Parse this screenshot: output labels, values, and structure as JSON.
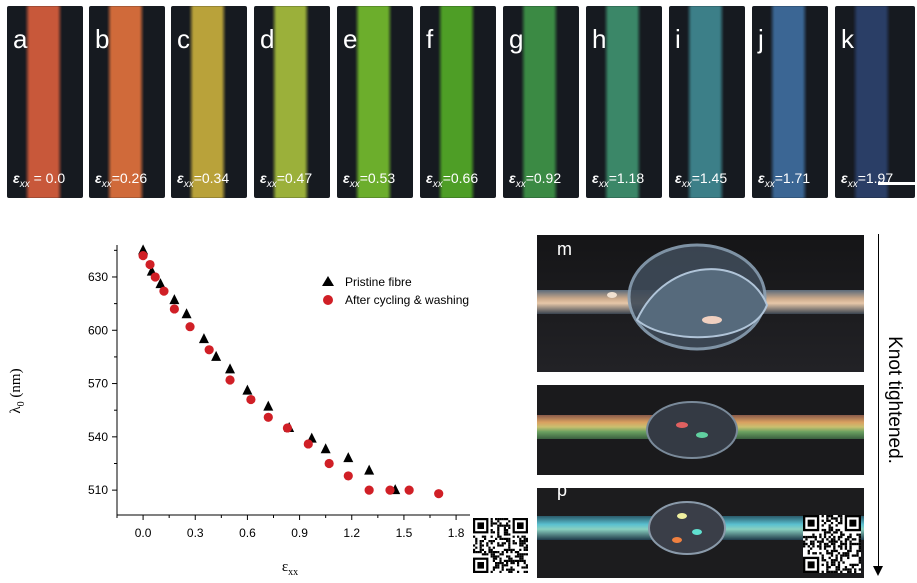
{
  "panels": [
    {
      "letter": "a",
      "symbol": "ε",
      "sub": "xx",
      "strain": " = 0.0",
      "color": "#c8583a"
    },
    {
      "letter": "b",
      "symbol": "ε",
      "sub": "xx",
      "strain": "=0.26",
      "color": "#d06a3a"
    },
    {
      "letter": "c",
      "symbol": "ε",
      "sub": "xx",
      "strain": "=0.34",
      "color": "#b9a23a"
    },
    {
      "letter": "d",
      "symbol": "ε",
      "sub": "xx",
      "strain": "=0.47",
      "color": "#9bb03a"
    },
    {
      "letter": "e",
      "symbol": "ε",
      "sub": "xx",
      "strain": "=0.53",
      "color": "#6cae2c"
    },
    {
      "letter": "f",
      "symbol": "ε",
      "sub": "xx",
      "strain": "=0.66",
      "color": "#4e9e26"
    },
    {
      "letter": "g",
      "symbol": "ε",
      "sub": "xx",
      "strain": "=0.92",
      "color": "#3b8a44"
    },
    {
      "letter": "h",
      "symbol": "ε",
      "sub": "xx",
      "strain": "=1.18",
      "color": "#3b8768"
    },
    {
      "letter": "i",
      "symbol": "ε",
      "sub": "xx",
      "strain": "=1.45",
      "color": "#3c7f88"
    },
    {
      "letter": "j",
      "symbol": "ε",
      "sub": "xx",
      "strain": "=1.71",
      "color": "#3b6694"
    },
    {
      "letter": "k",
      "symbol": "ε",
      "sub": "xx",
      "strain": "=1.97",
      "color": "#2a3e66"
    }
  ],
  "photos": [
    {
      "label": "m"
    },
    {
      "label": ""
    },
    {
      "label": "p"
    }
  ],
  "side_label": "Knot tightened.",
  "chart_data": {
    "type": "scatter",
    "xlabel": "ε",
    "xlabel_sub": "xx",
    "ylabel": "λ",
    "ylabel_sub": "0",
    "ylabel_unit": " (nm)",
    "xlim": [
      -0.15,
      1.88
    ],
    "ylim": [
      496,
      648
    ],
    "xticks": [
      0.0,
      0.3,
      0.6,
      0.9,
      1.2,
      1.5,
      1.8
    ],
    "xtick_labels": [
      "0.0",
      "0.3",
      "0.6",
      "0.9",
      "1.2",
      "1.5",
      "1.8"
    ],
    "yticks": [
      510,
      540,
      570,
      600,
      630
    ],
    "ytick_labels": [
      "510",
      "540",
      "570",
      "600",
      "630"
    ],
    "legend_position": "top-right",
    "series": [
      {
        "name": "Pristine fibre",
        "marker": "triangle",
        "color": "#000000",
        "x": [
          0.0,
          0.05,
          0.1,
          0.18,
          0.25,
          0.35,
          0.42,
          0.5,
          0.6,
          0.72,
          0.84,
          0.97,
          1.05,
          1.18,
          1.3,
          1.45
        ],
        "y": [
          645,
          633,
          626,
          617,
          609,
          595,
          585,
          578,
          566,
          557,
          545,
          539,
          533,
          528,
          521,
          510
        ]
      },
      {
        "name": "After cycling & washing",
        "marker": "circle",
        "color": "#d01f26",
        "x": [
          0.0,
          0.04,
          0.07,
          0.12,
          0.18,
          0.27,
          0.38,
          0.5,
          0.62,
          0.72,
          0.83,
          0.95,
          1.07,
          1.18,
          1.3,
          1.42,
          1.53,
          1.7
        ],
        "y": [
          642,
          637,
          630,
          622,
          612,
          602,
          589,
          572,
          561,
          551,
          545,
          536,
          525,
          518,
          510,
          510,
          510,
          508
        ]
      }
    ]
  }
}
